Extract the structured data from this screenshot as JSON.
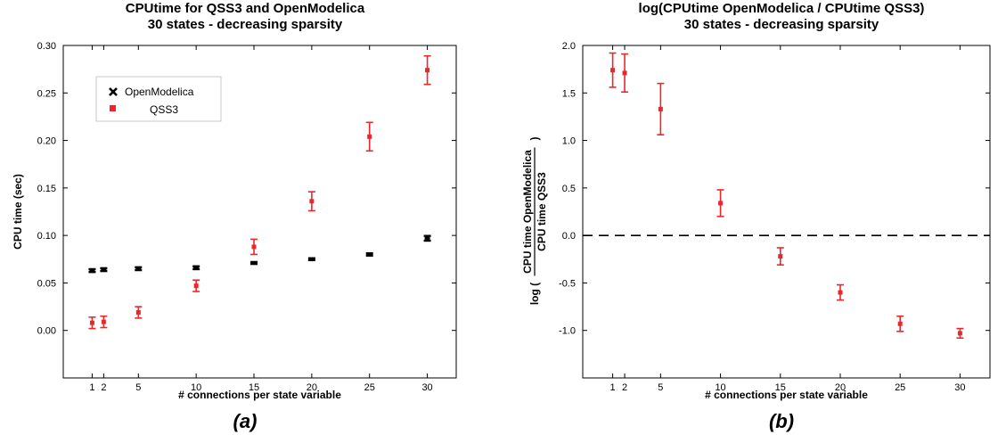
{
  "chart_data": [
    {
      "type": "scatter",
      "title": "CPUtime for QSS3 and OpenModelica",
      "subtitle": "30 states - decreasing sparsity",
      "xlabel": "# connections per state variable",
      "ylabel": "CPU time (sec)",
      "panel_label": "(a)",
      "x": [
        1,
        2,
        5,
        10,
        15,
        20,
        25,
        30
      ],
      "xticks": [
        1,
        2,
        5,
        10,
        15,
        20,
        25,
        30
      ],
      "xlim": [
        -1.5,
        32.5
      ],
      "ylim": [
        -0.05,
        0.3
      ],
      "yticks": [
        "0.00",
        "0.05",
        "0.10",
        "0.15",
        "0.20",
        "0.25",
        "0.30"
      ],
      "legend": {
        "placement": "top-left"
      },
      "series": [
        {
          "name": "OpenModelica",
          "color": "#000000",
          "marker": "x",
          "values": [
            0.063,
            0.064,
            0.065,
            0.066,
            0.071,
            0.075,
            0.08,
            0.097
          ],
          "err": [
            0.0015,
            0.0015,
            0.0015,
            0.0015,
            0.001,
            0.001,
            0.0012,
            0.0025
          ]
        },
        {
          "name": "QSS3",
          "color": "#e8282b",
          "marker": "square",
          "values": [
            0.008,
            0.009,
            0.019,
            0.047,
            0.088,
            0.136,
            0.204,
            0.274
          ],
          "err": [
            0.006,
            0.006,
            0.006,
            0.006,
            0.008,
            0.01,
            0.015,
            0.015
          ]
        }
      ]
    },
    {
      "type": "scatter",
      "title": "log(CPUtime OpenModelica / CPUtime QSS3)",
      "subtitle": "30 states - decreasing sparsity",
      "xlabel": "# connections per state variable",
      "ylabel_prefix": "log (",
      "ylabel_numerator": "CPU time OpenModelica",
      "ylabel_denominator": "CPU time QSS3",
      "ylabel_suffix": ")",
      "panel_label": "(b)",
      "x": [
        1,
        2,
        5,
        10,
        15,
        20,
        25,
        30
      ],
      "xticks": [
        1,
        2,
        5,
        10,
        15,
        20,
        25,
        30
      ],
      "xlim": [
        -1.5,
        32.5
      ],
      "ylim": [
        -1.5,
        2.0
      ],
      "yticks": [
        "-1.0",
        "-0.5",
        "0.0",
        "0.5",
        "1.0",
        "1.5",
        "2.0"
      ],
      "reference_line": 0,
      "series": [
        {
          "color": "#e8282b",
          "marker": "square",
          "values": [
            1.74,
            1.71,
            1.33,
            0.34,
            -0.22,
            -0.6,
            -0.93,
            -1.03
          ],
          "err": [
            0.18,
            0.2,
            0.27,
            0.14,
            0.09,
            0.08,
            0.08,
            0.05
          ]
        }
      ]
    }
  ]
}
